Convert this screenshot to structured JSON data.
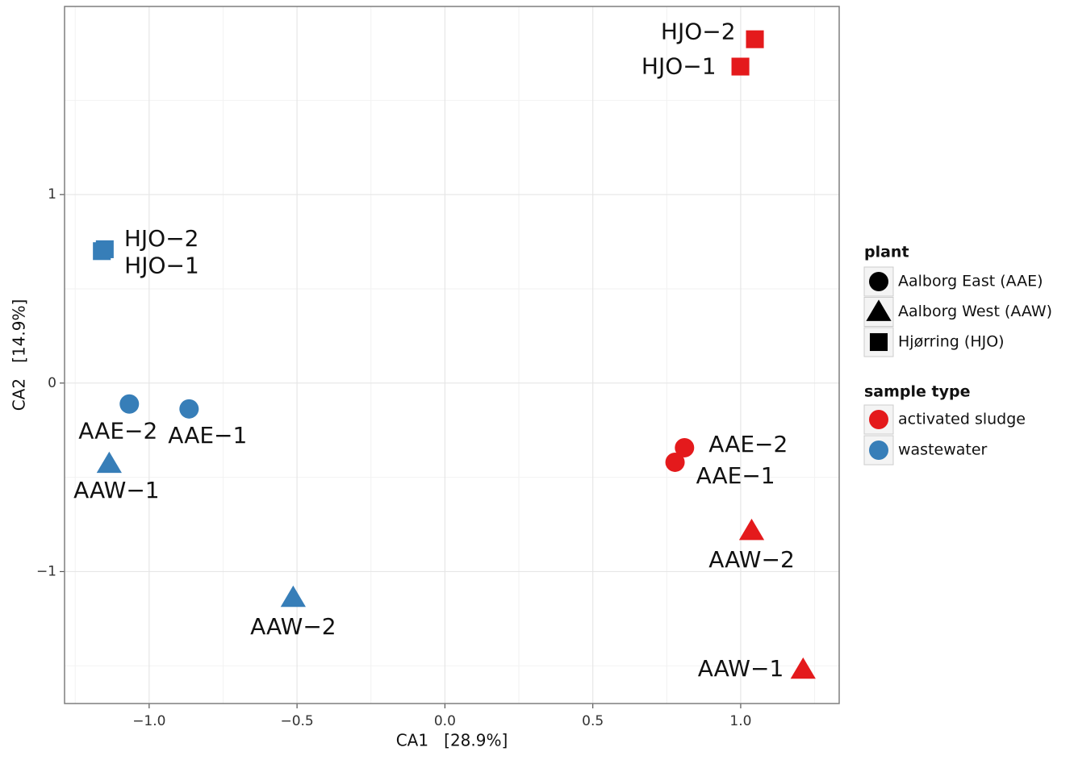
{
  "chart_data": {
    "type": "scatter",
    "xlabel": "CA1   [28.9%]",
    "ylabel": "CA2   [14.9%]",
    "xlim": [
      -1.286,
      1.333
    ],
    "ylim": [
      -1.7,
      1.998
    ],
    "xticks": [
      {
        "value": -1,
        "label": "−1.0"
      },
      {
        "value": -0.5,
        "label": "−0.5"
      },
      {
        "value": 0,
        "label": "0.0"
      },
      0.5,
      {
        "value": 1,
        "label": "1.0"
      }
    ],
    "yticks": [
      {
        "value": -1,
        "label": "−1"
      },
      0,
      1
    ],
    "grid": true,
    "series": [
      {
        "name": "activated sludge",
        "color": "#e41a1c",
        "labels": [
          "HJO−2",
          "HJO−1",
          "AAE−2",
          "AAE−1",
          "AAW−2",
          "AAW−1"
        ],
        "shapes": [
          "square",
          "square",
          "circle",
          "circle",
          "triangle",
          "triangle"
        ],
        "x": [
          1.048,
          0.999,
          0.81,
          0.778,
          1.037,
          1.211
        ],
        "y": [
          1.824,
          1.679,
          -0.343,
          -0.42,
          -0.784,
          -1.52
        ]
      },
      {
        "name": "wastewater",
        "color": "#377eb8",
        "labels": [
          "HJO−2",
          "HJO−1",
          "AAE−2",
          "AAE−1",
          "AAW−1",
          "AAW−2"
        ],
        "shapes": [
          "square",
          "square",
          "circle",
          "circle",
          "triangle",
          "triangle"
        ],
        "x": [
          -1.15,
          -1.16,
          -1.067,
          -0.865,
          -1.135,
          -0.513
        ],
        "y": [
          0.71,
          0.7,
          -0.111,
          -0.137,
          -0.428,
          -1.139
        ]
      }
    ],
    "legends": [
      {
        "title": "plant",
        "entries": [
          {
            "label": "Aalborg East (AAE)",
            "shape": "circle"
          },
          {
            "label": "Aalborg West (AAW)",
            "shape": "triangle"
          },
          {
            "label": "Hjørring (HJO)",
            "shape": "square"
          }
        ]
      },
      {
        "title": "sample  type"
      }
    ]
  }
}
